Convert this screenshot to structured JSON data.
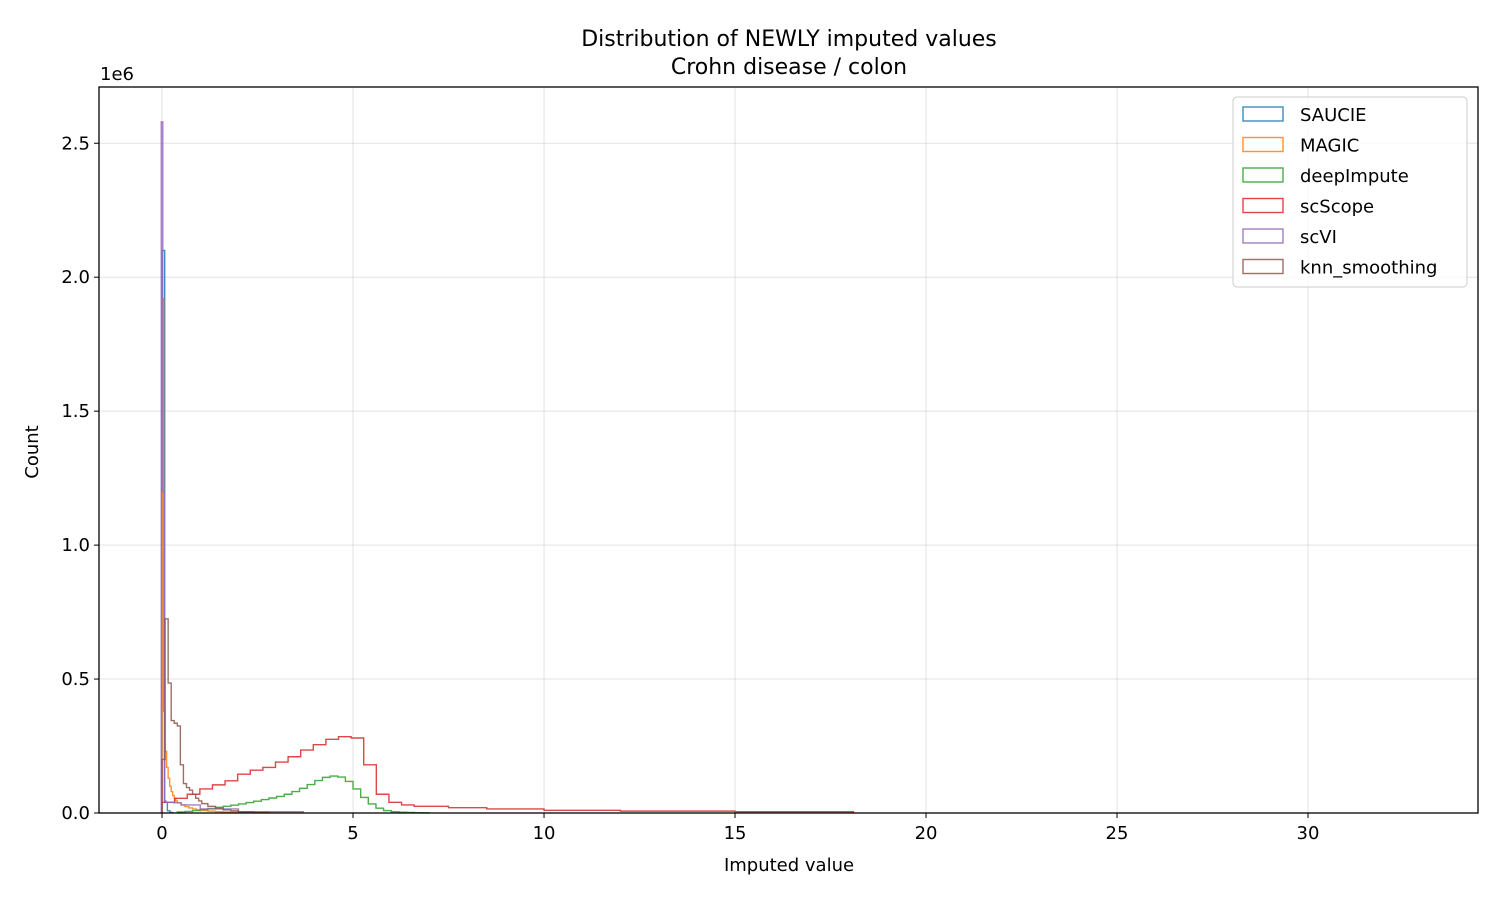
{
  "chart_data": {
    "type": "histogram",
    "title": "Distribution of NEWLY imputed values",
    "subtitle": "Crohn disease / colon",
    "xlabel": "Imputed value",
    "ylabel": "Count",
    "y_offset_label": "1e6",
    "y_scale": 1000000,
    "xlim": [
      -1.65,
      34.45
    ],
    "ylim": [
      0,
      2710000
    ],
    "grid": true,
    "legend_position": "top-right",
    "x_ticks": [
      0,
      5,
      10,
      15,
      20,
      25,
      30
    ],
    "x_tick_labels": [
      "0",
      "5",
      "10",
      "15",
      "20",
      "25",
      "30"
    ],
    "y_ticks": [
      0,
      500000,
      1000000,
      1500000,
      2000000,
      2500000
    ],
    "y_tick_labels": [
      "0.0",
      "0.5",
      "1.0",
      "1.5",
      "2.0",
      "2.5"
    ],
    "series": [
      {
        "name": "SAUCIE",
        "color": "#1f77b4",
        "edges": [
          0.0,
          0.07,
          0.14,
          0.21,
          0.28
        ],
        "counts": [
          2100000,
          40000,
          8000,
          2000
        ]
      },
      {
        "name": "MAGIC",
        "color": "#ff7f0e",
        "edges": [
          0.0,
          0.04,
          0.08,
          0.12,
          0.16,
          0.2,
          0.24,
          0.28,
          0.32,
          0.36,
          0.4,
          0.5,
          0.6,
          0.7,
          0.8,
          0.9,
          1.0,
          1.2,
          1.4,
          1.6,
          1.8,
          2.0
        ],
        "counts": [
          1920000,
          380000,
          230000,
          170000,
          130000,
          100000,
          80000,
          65000,
          55000,
          45000,
          38000,
          30000,
          24000,
          19000,
          15000,
          12000,
          9000,
          7000,
          5000,
          4000,
          3000
        ]
      },
      {
        "name": "deepImpute",
        "color": "#2ca02c",
        "edges": [
          0.4,
          0.6,
          0.8,
          1.0,
          1.2,
          1.4,
          1.6,
          1.8,
          2.0,
          2.2,
          2.4,
          2.6,
          2.8,
          3.0,
          3.2,
          3.4,
          3.6,
          3.8,
          4.0,
          4.2,
          4.4,
          4.6,
          4.8,
          5.0,
          5.2,
          5.4,
          5.6,
          5.8,
          6.0,
          6.2,
          6.4,
          6.6,
          6.8,
          7.0
        ],
        "counts": [
          4000,
          6000,
          9000,
          13000,
          17000,
          21000,
          25000,
          29000,
          34000,
          39000,
          44000,
          50000,
          56000,
          62000,
          70000,
          80000,
          92000,
          106000,
          121000,
          133000,
          138000,
          134000,
          118000,
          90000,
          58000,
          34000,
          18000,
          9000,
          5000,
          3000,
          2000,
          1000,
          500
        ]
      },
      {
        "name": "scScope",
        "color": "#d62728",
        "edges": [
          0.0,
          0.33,
          0.66,
          0.99,
          1.32,
          1.65,
          1.98,
          2.31,
          2.64,
          2.97,
          3.3,
          3.63,
          3.96,
          4.29,
          4.62,
          4.95,
          5.28,
          5.61,
          5.94,
          6.27,
          6.6,
          7.5,
          8.5,
          10.0,
          12.0,
          15.0,
          18.1
        ],
        "counts": [
          40000,
          55000,
          70000,
          90000,
          105000,
          120000,
          145000,
          160000,
          170000,
          190000,
          210000,
          235000,
          255000,
          275000,
          285000,
          280000,
          180000,
          70000,
          40000,
          30000,
          25000,
          20000,
          15000,
          10000,
          7000,
          5000
        ]
      },
      {
        "name": "scVI",
        "color": "#9467bd",
        "edges": [
          -0.02,
          0.02,
          0.06,
          0.1,
          0.3,
          0.5,
          1.0,
          2.0,
          3.7
        ],
        "counts": [
          2580000,
          1200000,
          45000,
          40000,
          38000,
          30000,
          15000,
          5000
        ]
      },
      {
        "name": "knn_smoothing",
        "color": "#8c564b",
        "edges": [
          0.0,
          0.08,
          0.16,
          0.24,
          0.32,
          0.4,
          0.48,
          0.56,
          0.64,
          0.72,
          0.8,
          0.88,
          0.96,
          1.04,
          1.2,
          1.4,
          1.6,
          1.8,
          2.0,
          2.4,
          2.8
        ],
        "counts": [
          200000,
          725000,
          485000,
          345000,
          335000,
          325000,
          180000,
          110000,
          95000,
          85000,
          70000,
          55000,
          45000,
          35000,
          25000,
          18000,
          12000,
          8000,
          5000,
          2000
        ]
      }
    ]
  }
}
